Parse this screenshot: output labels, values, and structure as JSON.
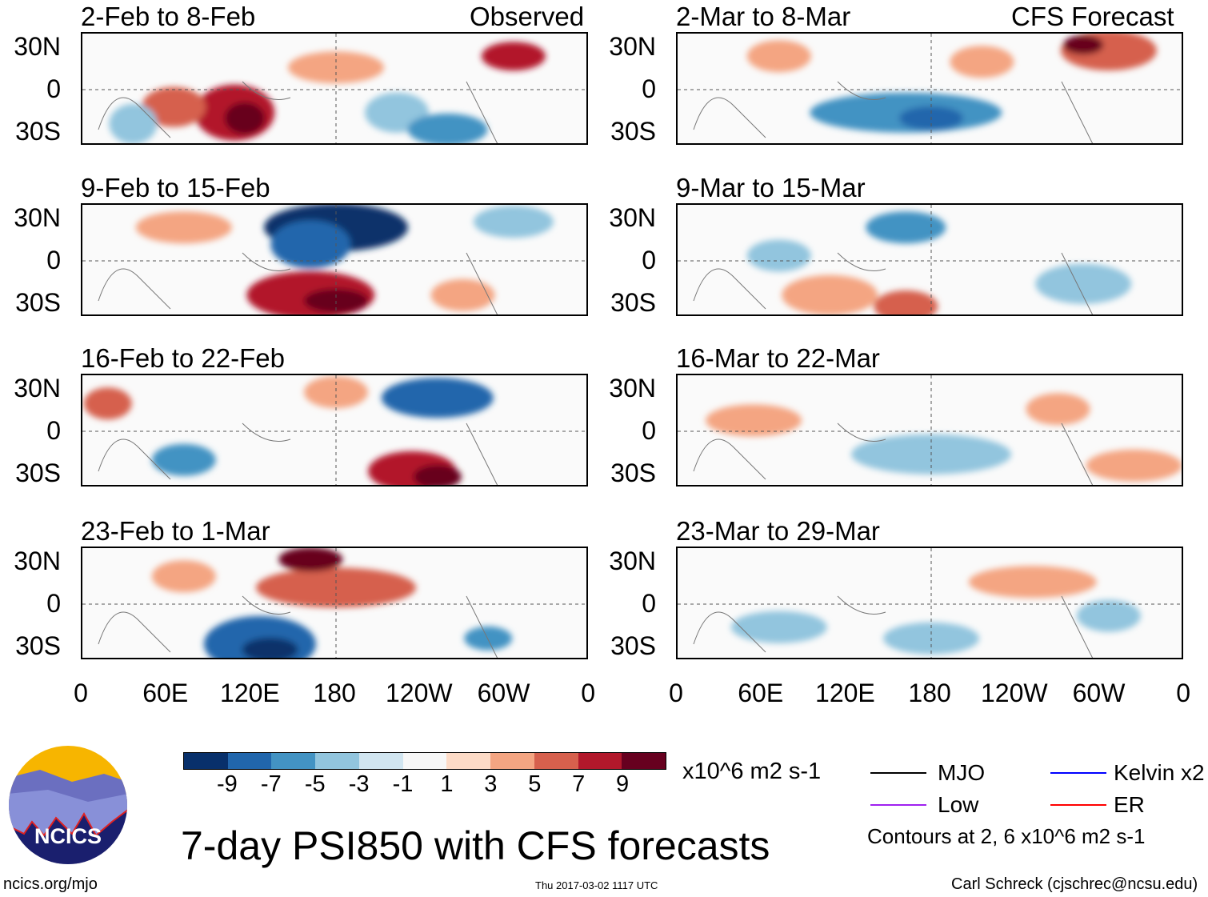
{
  "observed_label": "Observed",
  "forecast_label": "CFS Forecast",
  "panels_left": [
    {
      "title": "2-Feb to 8-Feb"
    },
    {
      "title": "9-Feb to 15-Feb"
    },
    {
      "title": "16-Feb to 22-Feb"
    },
    {
      "title": "23-Feb to 1-Mar"
    }
  ],
  "panels_right": [
    {
      "title": "2-Mar to 8-Mar"
    },
    {
      "title": "9-Mar to 15-Mar"
    },
    {
      "title": "16-Mar to 22-Mar"
    },
    {
      "title": "23-Mar to 29-Mar"
    }
  ],
  "y_ticks": [
    "30N",
    "0",
    "30S"
  ],
  "x_ticks": [
    "0",
    "60E",
    "120E",
    "180",
    "120W",
    "60W",
    "0"
  ],
  "colorbar": {
    "colors": [
      "#08306b",
      "#2166ac",
      "#4393c3",
      "#92c5de",
      "#d1e5f0",
      "#f7f7f7",
      "#fddbc7",
      "#f4a582",
      "#d6604d",
      "#b2182b",
      "#67001f"
    ],
    "labels": [
      "-9",
      "-7",
      "-5",
      "-3",
      "-1",
      "1",
      "3",
      "5",
      "7",
      "9"
    ],
    "units": "x10^6 m2 s-1"
  },
  "legend": [
    {
      "label": "MJO",
      "color": "#000000"
    },
    {
      "label": "Kelvin x2",
      "color": "#0000ff"
    },
    {
      "label": "Low",
      "color": "#a020f0"
    },
    {
      "label": "ER",
      "color": "#ff0000"
    }
  ],
  "contours_note": "Contours at 2, 6 x10^6 m2 s-1",
  "title": "7-day PSI850 with CFS forecasts",
  "logo_text": "NCICS",
  "site": "ncics.org/mjo",
  "timestamp": "Thu 2017-03-02 1117 UTC",
  "author": "Carl Schreck (cjschrec@ncsu.edu)"
}
